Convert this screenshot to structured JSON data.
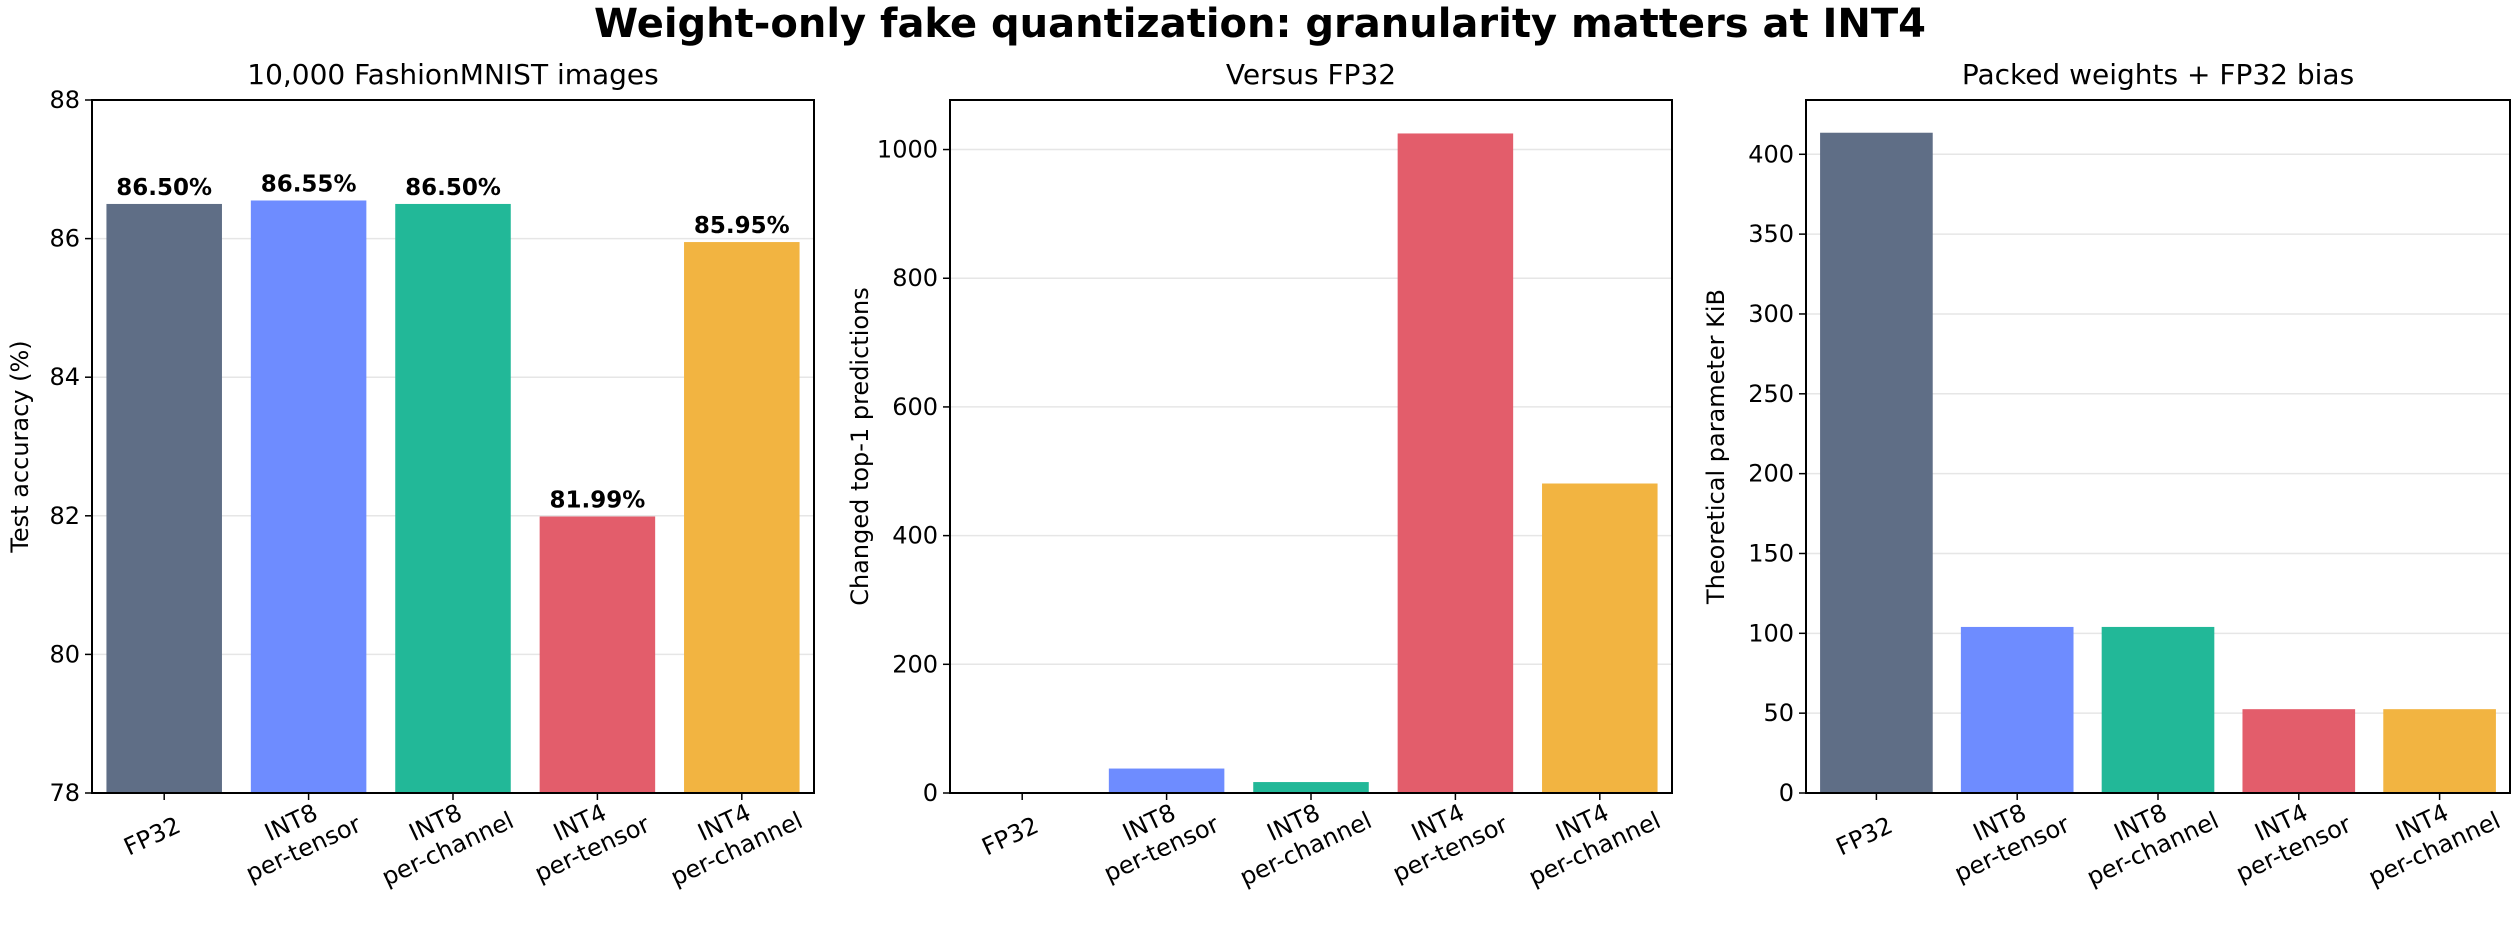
{
  "figure": {
    "title": "Weight-only fake quantization: granularity matters at INT4"
  },
  "chart_data": [
    {
      "type": "bar",
      "title": "10,000 FashionMNIST images",
      "xlabel": "",
      "ylabel": "Test accuracy (%)",
      "categories": [
        [
          "FP32"
        ],
        [
          "INT8",
          "per-tensor"
        ],
        [
          "INT8",
          "per-channel"
        ],
        [
          "INT4",
          "per-tensor"
        ],
        [
          "INT4",
          "per-channel"
        ]
      ],
      "values": [
        86.5,
        86.55,
        86.5,
        81.99,
        85.95
      ],
      "data_labels": [
        "86.50%",
        "86.55%",
        "86.50%",
        "81.99%",
        "85.95%"
      ],
      "colors": [
        "#5f6e86",
        "#6e8cff",
        "#22b898",
        "#e35d6b",
        "#f2b441"
      ],
      "ylim": [
        78,
        88
      ],
      "yticks": [
        78,
        80,
        82,
        84,
        86,
        88
      ],
      "grid": true
    },
    {
      "type": "bar",
      "title": "Versus FP32",
      "xlabel": "",
      "ylabel": "Changed top-1 predictions",
      "categories": [
        [
          "FP32"
        ],
        [
          "INT8",
          "per-tensor"
        ],
        [
          "INT8",
          "per-channel"
        ],
        [
          "INT4",
          "per-tensor"
        ],
        [
          "INT4",
          "per-channel"
        ]
      ],
      "values": [
        0,
        38,
        17,
        1025,
        481
      ],
      "colors": [
        "#5f6e86",
        "#6e8cff",
        "#22b898",
        "#e35d6b",
        "#f2b441"
      ],
      "ylim": [
        0,
        1077
      ],
      "yticks": [
        0,
        200,
        400,
        600,
        800,
        1000
      ],
      "grid": true
    },
    {
      "type": "bar",
      "title": "Packed weights + FP32 bias",
      "xlabel": "",
      "ylabel": "Theoretical parameter KiB",
      "categories": [
        [
          "FP32"
        ],
        [
          "INT8",
          "per-tensor"
        ],
        [
          "INT8",
          "per-channel"
        ],
        [
          "INT4",
          "per-tensor"
        ],
        [
          "INT4",
          "per-channel"
        ]
      ],
      "values": [
        413.5,
        104,
        104,
        52.5,
        52.5
      ],
      "colors": [
        "#5f6e86",
        "#6e8cff",
        "#22b898",
        "#e35d6b",
        "#f2b441"
      ],
      "ylim": [
        0,
        434
      ],
      "yticks": [
        0,
        50,
        100,
        150,
        200,
        250,
        300,
        350,
        400
      ],
      "grid": true
    }
  ]
}
